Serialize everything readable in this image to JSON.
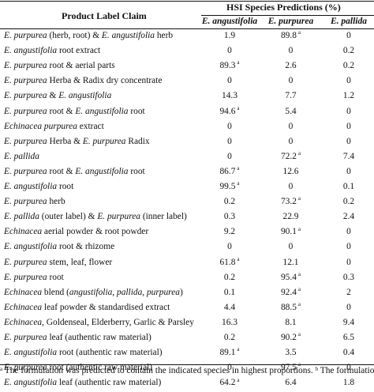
{
  "header": {
    "label_col": "Product Label Claim",
    "group": "HSI Species Predictions (%)",
    "species": [
      "E. angustifolia",
      "E. purpurea",
      "E. pallida"
    ]
  },
  "rows": [
    {
      "label": [
        [
          "E. purpurea",
          true
        ],
        [
          " (herb, root) & ",
          false
        ],
        [
          "E. angustifolia",
          true
        ],
        [
          " herb",
          false
        ]
      ],
      "v": [
        "1.9",
        "89.8",
        "0"
      ],
      "s": [
        "",
        "a",
        ""
      ]
    },
    {
      "label": [
        [
          "E. angustifolia",
          true
        ],
        [
          " root extract",
          false
        ]
      ],
      "v": [
        "0",
        "0",
        "0.2"
      ],
      "s": [
        "",
        "",
        ""
      ]
    },
    {
      "label": [
        [
          "E. purpurea",
          true
        ],
        [
          " root & aerial parts",
          false
        ]
      ],
      "v": [
        "89.3",
        "2.6",
        "0.2"
      ],
      "s": [
        "a",
        "",
        ""
      ]
    },
    {
      "label": [
        [
          "E. purpurea",
          true
        ],
        [
          " Herba & Radix dry concentrate",
          false
        ]
      ],
      "v": [
        "0",
        "0",
        "0"
      ],
      "s": [
        "",
        "",
        ""
      ]
    },
    {
      "label": [
        [
          "E. purpurea",
          true
        ],
        [
          " & ",
          false
        ],
        [
          "E. angustifolia",
          true
        ]
      ],
      "v": [
        "14.3",
        "7.7",
        "1.2"
      ],
      "s": [
        "",
        "",
        ""
      ]
    },
    {
      "label": [
        [
          "E. purpurea",
          true
        ],
        [
          " root & ",
          false
        ],
        [
          "E. angustifolia",
          true
        ],
        [
          " root",
          false
        ]
      ],
      "v": [
        "94.6",
        "5.4",
        "0"
      ],
      "s": [
        "a",
        "",
        ""
      ]
    },
    {
      "label": [
        [
          "Echinacea purpurea",
          true
        ],
        [
          " extract",
          false
        ]
      ],
      "v": [
        "0",
        "0",
        "0"
      ],
      "s": [
        "",
        "",
        ""
      ]
    },
    {
      "label": [
        [
          "E. purpurea",
          true
        ],
        [
          " Herba & ",
          false
        ],
        [
          "E. purpurea",
          true
        ],
        [
          " Radix",
          false
        ]
      ],
      "v": [
        "0",
        "0",
        "0"
      ],
      "s": [
        "",
        "",
        ""
      ]
    },
    {
      "label": [
        [
          "E. pallida",
          true
        ]
      ],
      "v": [
        "0",
        "72.2",
        "7.4"
      ],
      "s": [
        "",
        "a",
        ""
      ]
    },
    {
      "label": [
        [
          "E. purpurea",
          true
        ],
        [
          " root & ",
          false
        ],
        [
          "E. angustifolia",
          true
        ],
        [
          " root",
          false
        ]
      ],
      "v": [
        "86.7",
        "12.6",
        "0"
      ],
      "s": [
        "a",
        "",
        ""
      ]
    },
    {
      "label": [
        [
          "E. angustifolia",
          true
        ],
        [
          " root",
          false
        ]
      ],
      "v": [
        "99.5",
        "0",
        "0.1"
      ],
      "s": [
        "a",
        "",
        ""
      ]
    },
    {
      "label": [
        [
          "E. purpurea",
          true
        ],
        [
          " herb",
          false
        ]
      ],
      "v": [
        "0.2",
        "73.2",
        "0.2"
      ],
      "s": [
        "",
        "a",
        ""
      ]
    },
    {
      "label": [
        [
          "E. pallida",
          true
        ],
        [
          " (outer label) & ",
          false
        ],
        [
          "E. purpurea",
          true
        ],
        [
          " (inner label)",
          false
        ]
      ],
      "v": [
        "0.3",
        "22.9",
        "2.4"
      ],
      "s": [
        "",
        "",
        ""
      ]
    },
    {
      "label": [
        [
          "Echinacea",
          true
        ],
        [
          " aerial powder & root powder",
          false
        ]
      ],
      "v": [
        "9.2",
        "90.1",
        "0"
      ],
      "s": [
        "",
        "a",
        ""
      ]
    },
    {
      "label": [
        [
          "E. angustifolia",
          true
        ],
        [
          " root & rhizome",
          false
        ]
      ],
      "v": [
        "0",
        "0",
        "0"
      ],
      "s": [
        "",
        "",
        ""
      ]
    },
    {
      "label": [
        [
          "E. purpurea",
          true
        ],
        [
          " stem, leaf, flower",
          false
        ]
      ],
      "v": [
        "61.8",
        "12.1",
        "0"
      ],
      "s": [
        "a",
        "",
        ""
      ]
    },
    {
      "label": [
        [
          "E. purpurea",
          true
        ],
        [
          " root",
          false
        ]
      ],
      "v": [
        "0.2",
        "95.4",
        "0.3"
      ],
      "s": [
        "",
        "a",
        ""
      ]
    },
    {
      "label": [
        [
          "Echinacea",
          true
        ],
        [
          " blend (",
          false
        ],
        [
          "angustifolia, pallida, purpurea",
          true
        ],
        [
          ")",
          false
        ]
      ],
      "v": [
        "0.1",
        "92.4",
        "2"
      ],
      "s": [
        "",
        "a",
        ""
      ]
    },
    {
      "label": [
        [
          "Echinacea",
          true
        ],
        [
          " leaf powder & standardised extract",
          false
        ]
      ],
      "v": [
        "4.4",
        "88.5",
        "0"
      ],
      "s": [
        "",
        "a",
        ""
      ]
    },
    {
      "label": [
        [
          "Echinacea",
          true
        ],
        [
          ", Goldenseal, Elderberry, Garlic & Parsley",
          false
        ]
      ],
      "v": [
        "16.3",
        "8.1",
        "9.4"
      ],
      "s": [
        "",
        "",
        ""
      ]
    },
    {
      "label": [
        [
          "E. purpurea",
          true
        ],
        [
          " leaf (authentic raw material)",
          false
        ]
      ],
      "v": [
        "0.2",
        "90.2",
        "6.5"
      ],
      "s": [
        "",
        "a",
        ""
      ]
    },
    {
      "label": [
        [
          "E. angustifolia",
          true
        ],
        [
          " root (authentic raw material)",
          false
        ]
      ],
      "v": [
        "89.1",
        "3.5",
        "0.4"
      ],
      "s": [
        "a",
        "",
        ""
      ]
    },
    {
      "label": [
        [
          "E. purpurea",
          true
        ],
        [
          " root (authentic raw material)",
          false
        ]
      ],
      "v": [
        "0",
        "97.5",
        "0"
      ],
      "s": [
        "",
        "a",
        ""
      ]
    },
    {
      "label": [
        [
          "E. angustifolia",
          true
        ],
        [
          " leaf (authentic raw material)",
          false
        ]
      ],
      "v": [
        "64.2",
        "6.4",
        "1.8"
      ],
      "s": [
        "a",
        "",
        ""
      ]
    }
  ],
  "footnote": "ᵃ The formulation was predicted to contain the indicated species in highest proportions. ᵇ The formulation"
}
